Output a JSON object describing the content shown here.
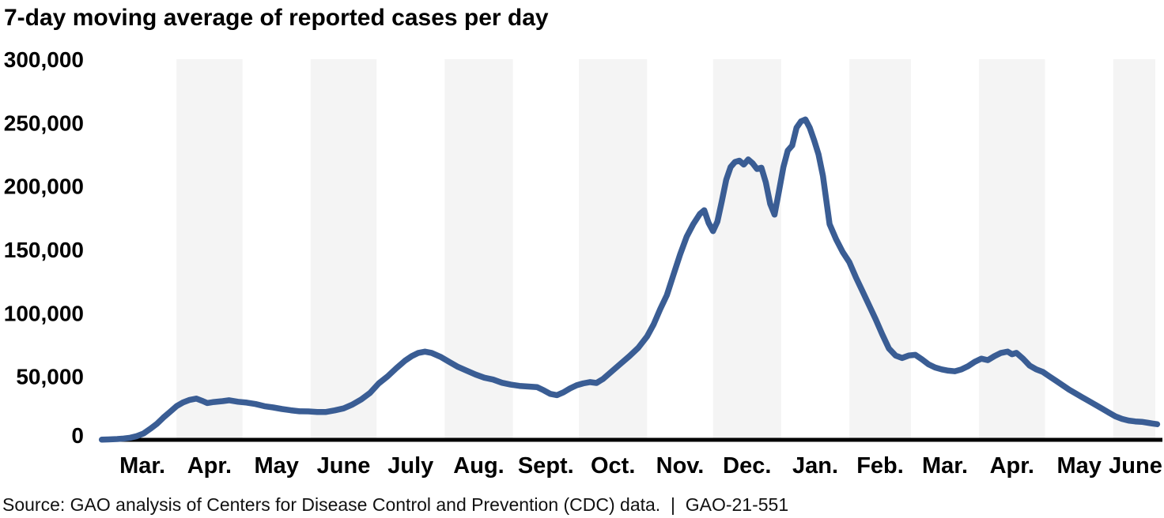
{
  "title": "7-day moving average of reported cases per day",
  "source_note": "Source: GAO analysis of Centers for Disease Control and Prevention (CDC) data.  |  GAO-21-551",
  "colors": {
    "line": "#3a5d94",
    "band": "#f4f4f4",
    "axis": "#000000",
    "text": "#000000"
  },
  "chart_data": {
    "type": "line",
    "title": "7-day moving average of reported cases per day",
    "legend": "none",
    "grid": "no gridlines; alternating light-gray month bands",
    "y_axis": {
      "min": 0,
      "max": 300000,
      "tick_interval": 50000,
      "tick_labels": [
        "0",
        "50,000",
        "100,000",
        "150,000",
        "200,000",
        "250,000",
        "300,000"
      ]
    },
    "x_axis": {
      "range": [
        "2020-02-27",
        "2021-06-21"
      ],
      "months": [
        {
          "label": "Mar.",
          "days": 31,
          "shaded": false
        },
        {
          "label": "Apr.",
          "days": 30,
          "shaded": true
        },
        {
          "label": "May",
          "days": 31,
          "shaded": false
        },
        {
          "label": "June",
          "days": 30,
          "shaded": true
        },
        {
          "label": "July",
          "days": 31,
          "shaded": false
        },
        {
          "label": "Aug.",
          "days": 31,
          "shaded": true
        },
        {
          "label": "Sept.",
          "days": 30,
          "shaded": false
        },
        {
          "label": "Oct.",
          "days": 31,
          "shaded": true
        },
        {
          "label": "Nov.",
          "days": 30,
          "shaded": false
        },
        {
          "label": "Dec.",
          "days": 31,
          "shaded": true
        },
        {
          "label": "Jan.",
          "days": 31,
          "shaded": false
        },
        {
          "label": "Feb.",
          "days": 28,
          "shaded": true
        },
        {
          "label": "Mar.",
          "days": 31,
          "shaded": false
        },
        {
          "label": "Apr.",
          "days": 30,
          "shaded": true
        },
        {
          "label": "May",
          "days": 31,
          "shaded": false
        },
        {
          "label": "June",
          "days": 30,
          "shaded": true
        }
      ]
    },
    "series": [
      {
        "name": "7-day moving average of reported cases per day",
        "points": [
          [
            "2020-02-27",
            100
          ],
          [
            "2020-03-01",
            300
          ],
          [
            "2020-03-05",
            600
          ],
          [
            "2020-03-08",
            1000
          ],
          [
            "2020-03-11",
            1700
          ],
          [
            "2020-03-14",
            2900
          ],
          [
            "2020-03-17",
            5000
          ],
          [
            "2020-03-20",
            8600
          ],
          [
            "2020-03-23",
            12500
          ],
          [
            "2020-03-26",
            17500
          ],
          [
            "2020-03-29",
            22000
          ],
          [
            "2020-04-01",
            26500
          ],
          [
            "2020-04-04",
            29500
          ],
          [
            "2020-04-07",
            31500
          ],
          [
            "2020-04-10",
            32500
          ],
          [
            "2020-04-13",
            30500
          ],
          [
            "2020-04-15",
            29000
          ],
          [
            "2020-04-18",
            29800
          ],
          [
            "2020-04-22",
            30500
          ],
          [
            "2020-04-25",
            31200
          ],
          [
            "2020-04-29",
            30000
          ],
          [
            "2020-05-03",
            29300
          ],
          [
            "2020-05-07",
            28200
          ],
          [
            "2020-05-11",
            26500
          ],
          [
            "2020-05-15",
            25500
          ],
          [
            "2020-05-19",
            24300
          ],
          [
            "2020-05-23",
            23300
          ],
          [
            "2020-05-27",
            22500
          ],
          [
            "2020-05-31",
            22400
          ],
          [
            "2020-06-04",
            22000
          ],
          [
            "2020-06-08",
            22000
          ],
          [
            "2020-06-12",
            23200
          ],
          [
            "2020-06-16",
            24800
          ],
          [
            "2020-06-20",
            27800
          ],
          [
            "2020-06-24",
            31800
          ],
          [
            "2020-06-28",
            37000
          ],
          [
            "2020-07-02",
            44500
          ],
          [
            "2020-07-06",
            50000
          ],
          [
            "2020-07-10",
            56500
          ],
          [
            "2020-07-14",
            62500
          ],
          [
            "2020-07-17",
            66000
          ],
          [
            "2020-07-20",
            68500
          ],
          [
            "2020-07-23",
            69500
          ],
          [
            "2020-07-26",
            68500
          ],
          [
            "2020-07-30",
            65500
          ],
          [
            "2020-08-03",
            61500
          ],
          [
            "2020-08-07",
            57500
          ],
          [
            "2020-08-11",
            54500
          ],
          [
            "2020-08-15",
            51500
          ],
          [
            "2020-08-19",
            49000
          ],
          [
            "2020-08-23",
            47500
          ],
          [
            "2020-08-27",
            45000
          ],
          [
            "2020-08-31",
            43500
          ],
          [
            "2020-09-04",
            42500
          ],
          [
            "2020-09-08",
            42000
          ],
          [
            "2020-09-12",
            41500
          ],
          [
            "2020-09-15",
            39000
          ],
          [
            "2020-09-18",
            36200
          ],
          [
            "2020-09-21",
            35200
          ],
          [
            "2020-09-24",
            37500
          ],
          [
            "2020-09-27",
            40500
          ],
          [
            "2020-09-30",
            43000
          ],
          [
            "2020-10-03",
            44500
          ],
          [
            "2020-10-06",
            45500
          ],
          [
            "2020-10-09",
            44800
          ],
          [
            "2020-10-12",
            48000
          ],
          [
            "2020-10-16",
            54000
          ],
          [
            "2020-10-20",
            60000
          ],
          [
            "2020-10-24",
            66000
          ],
          [
            "2020-10-28",
            72500
          ],
          [
            "2020-11-01",
            81500
          ],
          [
            "2020-11-04",
            91000
          ],
          [
            "2020-11-07",
            103000
          ],
          [
            "2020-11-10",
            114000
          ],
          [
            "2020-11-13",
            130000
          ],
          [
            "2020-11-16",
            146000
          ],
          [
            "2020-11-19",
            160000
          ],
          [
            "2020-11-22",
            170000
          ],
          [
            "2020-11-25",
            178000
          ],
          [
            "2020-11-27",
            181000
          ],
          [
            "2020-11-29",
            171000
          ],
          [
            "2020-12-01",
            164500
          ],
          [
            "2020-12-03",
            172000
          ],
          [
            "2020-12-05",
            188000
          ],
          [
            "2020-12-07",
            205000
          ],
          [
            "2020-12-09",
            215000
          ],
          [
            "2020-12-11",
            219000
          ],
          [
            "2020-12-13",
            220000
          ],
          [
            "2020-12-15",
            217000
          ],
          [
            "2020-12-17",
            221000
          ],
          [
            "2020-12-19",
            218000
          ],
          [
            "2020-12-21",
            213500
          ],
          [
            "2020-12-23",
            214500
          ],
          [
            "2020-12-25",
            203000
          ],
          [
            "2020-12-27",
            186000
          ],
          [
            "2020-12-29",
            177500
          ],
          [
            "2020-12-31",
            196000
          ],
          [
            "2021-01-02",
            215000
          ],
          [
            "2021-01-04",
            228000
          ],
          [
            "2021-01-06",
            232000
          ],
          [
            "2021-01-08",
            246000
          ],
          [
            "2021-01-10",
            251000
          ],
          [
            "2021-01-12",
            252500
          ],
          [
            "2021-01-14",
            246000
          ],
          [
            "2021-01-16",
            236000
          ],
          [
            "2021-01-18",
            225000
          ],
          [
            "2021-01-20",
            208000
          ],
          [
            "2021-01-23",
            170000
          ],
          [
            "2021-01-26",
            158000
          ],
          [
            "2021-01-29",
            148000
          ],
          [
            "2021-02-01",
            140000
          ],
          [
            "2021-02-04",
            128000
          ],
          [
            "2021-02-07",
            117000
          ],
          [
            "2021-02-10",
            106000
          ],
          [
            "2021-02-13",
            95000
          ],
          [
            "2021-02-16",
            83000
          ],
          [
            "2021-02-19",
            72000
          ],
          [
            "2021-02-22",
            66500
          ],
          [
            "2021-02-25",
            64500
          ],
          [
            "2021-02-28",
            66500
          ],
          [
            "2021-03-03",
            67000
          ],
          [
            "2021-03-06",
            63500
          ],
          [
            "2021-03-09",
            59500
          ],
          [
            "2021-03-12",
            57000
          ],
          [
            "2021-03-15",
            55500
          ],
          [
            "2021-03-18",
            54500
          ],
          [
            "2021-03-21",
            54000
          ],
          [
            "2021-03-24",
            55500
          ],
          [
            "2021-03-27",
            58000
          ],
          [
            "2021-03-30",
            61500
          ],
          [
            "2021-04-02",
            64000
          ],
          [
            "2021-04-05",
            62800
          ],
          [
            "2021-04-08",
            66000
          ],
          [
            "2021-04-11",
            68500
          ],
          [
            "2021-04-14",
            69500
          ],
          [
            "2021-04-16",
            67500
          ],
          [
            "2021-04-18",
            68500
          ],
          [
            "2021-04-21",
            64000
          ],
          [
            "2021-04-24",
            58500
          ],
          [
            "2021-04-27",
            55500
          ],
          [
            "2021-04-30",
            53500
          ],
          [
            "2021-05-03",
            50000
          ],
          [
            "2021-05-06",
            46500
          ],
          [
            "2021-05-09",
            43000
          ],
          [
            "2021-05-12",
            39500
          ],
          [
            "2021-05-15",
            36500
          ],
          [
            "2021-05-18",
            33500
          ],
          [
            "2021-05-21",
            30500
          ],
          [
            "2021-05-24",
            27500
          ],
          [
            "2021-05-27",
            24500
          ],
          [
            "2021-05-30",
            21500
          ],
          [
            "2021-06-02",
            18500
          ],
          [
            "2021-06-05",
            16500
          ],
          [
            "2021-06-08",
            15200
          ],
          [
            "2021-06-11",
            14500
          ],
          [
            "2021-06-14",
            14200
          ],
          [
            "2021-06-17",
            13400
          ],
          [
            "2021-06-19",
            12800
          ],
          [
            "2021-06-21",
            12300
          ]
        ]
      }
    ]
  }
}
